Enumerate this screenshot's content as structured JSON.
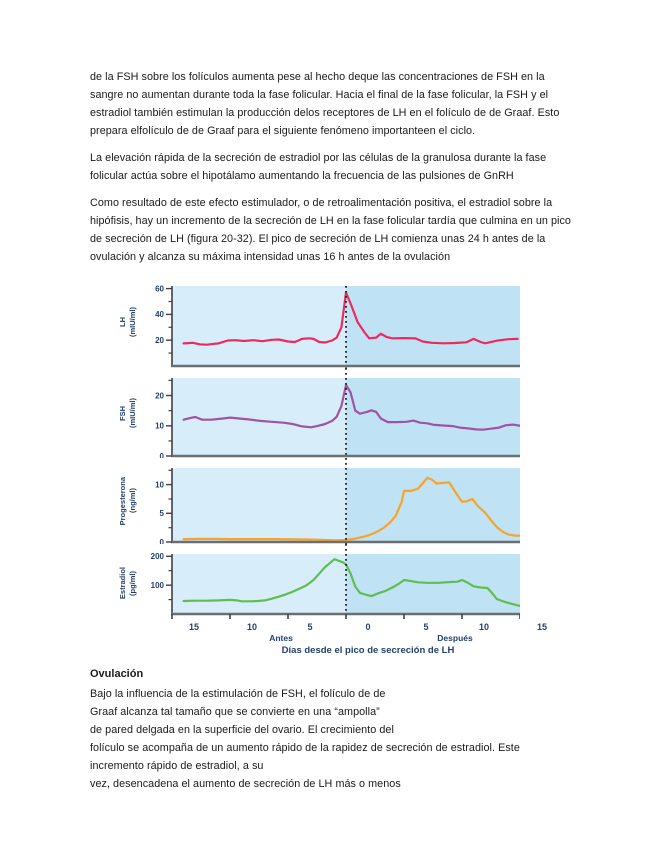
{
  "page": {
    "paragraphs": [
      "de la FSH sobre los folículos aumenta pese al hecho deque las concentraciones de FSH en la sangre no aumentan durante toda la fase folicular. Hacia el final de la fase folicular, la FSH y el estradiol también estimulan la producción delos receptores de LH en el folículo de de Graaf. Esto prepara elfolículo de de Graaf para el siguiente fenómeno importanteen el ciclo.",
      "La elevación rápida de la secreción de estradiol por las células de la granulosa durante la fase folicular actúa sobre el hipotálamo aumentando la frecuencia de las pulsiones de GnRH",
      "Como resultado de este efecto estimulador, o de retroalimentación positiva, el estradiol sobre la hipófisis, hay un incremento de la secreción de LH en la fase folicular tardía que culmina en un pico de secreción de LH (figura 20-32). El pico de secreción de LH comienza unas 24 h antes de la ovulación y alcanza su máxima intensidad unas 16 h antes de la ovulación"
    ],
    "ovulacion": {
      "heading": "Ovulación",
      "lines": [
        "Bajo la influencia de la estimulación de FSH, el folículo de de",
        "Graaf alcanza tal tamaño que se convierte en una “ampolla”",
        "de pared delgada en la superficie del ovario. El crecimiento del",
        "folículo se acompaña de un aumento rápido de la rapidez de secreción de estradiol. Este",
        "incremento rápido de estradiol, a su",
        "vez, desencadena el aumento de secreción de LH más o menos"
      ]
    }
  },
  "chart_data": {
    "type": "line",
    "xlabel": "Días desde el pico de secreción de LH",
    "x_range": [
      -15,
      15
    ],
    "x_ticks": [
      {
        "day": -15,
        "label": "15"
      },
      {
        "day": -10,
        "label": "10"
      },
      {
        "day": -5,
        "label": "5"
      },
      {
        "day": 0,
        "label": "0"
      },
      {
        "day": 5,
        "label": "5"
      },
      {
        "day": 10,
        "label": "10"
      },
      {
        "day": 15,
        "label": "15"
      }
    ],
    "x_region_labels": [
      {
        "label": "Antes",
        "day": -7.5
      },
      {
        "label": "Después",
        "day": 7.5
      }
    ],
    "marker": {
      "x": 0,
      "style": "dotted-vertical-line",
      "color": "#231f20"
    },
    "background": {
      "before_color": "#d7edf9",
      "after_color": "#bfe3f4"
    },
    "panels": [
      {
        "name": "LH",
        "ylabel": "LH",
        "yunits": "(mIU/ml)",
        "color": "#ec2a62",
        "ylim": [
          0,
          62
        ],
        "yticks": [
          20,
          40,
          60
        ],
        "yminor": [
          10,
          30,
          50
        ],
        "points": [
          [
            -14,
            17.5
          ],
          [
            -13.2,
            18
          ],
          [
            -12.6,
            16.8
          ],
          [
            -12,
            16.5
          ],
          [
            -11,
            17.5
          ],
          [
            -10.2,
            19.8
          ],
          [
            -9.5,
            20
          ],
          [
            -8.8,
            19.4
          ],
          [
            -8,
            20
          ],
          [
            -7.2,
            19.2
          ],
          [
            -6.4,
            20.3
          ],
          [
            -5.8,
            20.5
          ],
          [
            -5,
            19
          ],
          [
            -4.4,
            18.6
          ],
          [
            -3.8,
            21
          ],
          [
            -3.2,
            21.5
          ],
          [
            -2.8,
            21
          ],
          [
            -2.3,
            18.6
          ],
          [
            -1.8,
            18.2
          ],
          [
            -1.2,
            19.8
          ],
          [
            -0.8,
            22
          ],
          [
            -0.4,
            30
          ],
          [
            0,
            57
          ],
          [
            0.5,
            46
          ],
          [
            1,
            34
          ],
          [
            1.6,
            26
          ],
          [
            2,
            21.5
          ],
          [
            2.6,
            22
          ],
          [
            3,
            25
          ],
          [
            3.5,
            22.5
          ],
          [
            4,
            21.5
          ],
          [
            5,
            21.6
          ],
          [
            6,
            21.4
          ],
          [
            6.6,
            19
          ],
          [
            7.4,
            18
          ],
          [
            8.4,
            17.6
          ],
          [
            9.4,
            17.8
          ],
          [
            10.4,
            18.4
          ],
          [
            11,
            21
          ],
          [
            11.6,
            18.6
          ],
          [
            12,
            17.6
          ],
          [
            13,
            19.6
          ],
          [
            14,
            20.8
          ],
          [
            14.8,
            21
          ]
        ]
      },
      {
        "name": "FSH",
        "ylabel": "FSH",
        "yunits": "(mIU/ml)",
        "color": "#a2539f",
        "ylim": [
          0,
          25.8
        ],
        "yticks": [
          0,
          10,
          20
        ],
        "yminor": [
          5,
          15,
          25
        ],
        "points": [
          [
            -14,
            12
          ],
          [
            -13.4,
            12.6
          ],
          [
            -13,
            12.9
          ],
          [
            -12.4,
            12
          ],
          [
            -11.6,
            12
          ],
          [
            -10.6,
            12.4
          ],
          [
            -10,
            12.7
          ],
          [
            -9.2,
            12.4
          ],
          [
            -8.4,
            12.1
          ],
          [
            -7.4,
            11.6
          ],
          [
            -6.4,
            11.3
          ],
          [
            -5.4,
            11
          ],
          [
            -4.6,
            10.6
          ],
          [
            -3.8,
            9.8
          ],
          [
            -3,
            9.5
          ],
          [
            -2.4,
            10
          ],
          [
            -1.8,
            10.6
          ],
          [
            -1.2,
            11.6
          ],
          [
            -0.8,
            13
          ],
          [
            -0.4,
            16.5
          ],
          [
            0,
            23.5
          ],
          [
            0.4,
            21
          ],
          [
            0.8,
            15
          ],
          [
            1.2,
            14
          ],
          [
            1.8,
            14.6
          ],
          [
            2.2,
            15.1
          ],
          [
            2.6,
            14.6
          ],
          [
            3,
            12.4
          ],
          [
            3.6,
            11.2
          ],
          [
            4.4,
            11.2
          ],
          [
            5.2,
            11.3
          ],
          [
            5.8,
            11.7
          ],
          [
            6.4,
            11
          ],
          [
            7,
            10.8
          ],
          [
            7.6,
            10.3
          ],
          [
            8.4,
            10.1
          ],
          [
            9.2,
            9.9
          ],
          [
            9.8,
            9.4
          ],
          [
            10.6,
            9.1
          ],
          [
            11.2,
            8.8
          ],
          [
            11.8,
            8.7
          ],
          [
            12.4,
            9
          ],
          [
            13.2,
            9.4
          ],
          [
            13.8,
            10.2
          ],
          [
            14.4,
            10.4
          ],
          [
            15,
            10
          ]
        ]
      },
      {
        "name": "Progesterona",
        "ylabel": "Progesterona",
        "yunits": "(ng/ml)",
        "color": "#f6a42c",
        "ylim": [
          0,
          12.9
        ],
        "yticks": [
          0,
          5,
          10
        ],
        "yminor": [
          2.5,
          7.5,
          12.5
        ],
        "points": [
          [
            -14,
            0.5
          ],
          [
            -12,
            0.55
          ],
          [
            -10,
            0.5
          ],
          [
            -8,
            0.5
          ],
          [
            -6,
            0.5
          ],
          [
            -4,
            0.45
          ],
          [
            -2.5,
            0.4
          ],
          [
            -1,
            0.3
          ],
          [
            0,
            0.35
          ],
          [
            0.8,
            0.6
          ],
          [
            1.5,
            0.9
          ],
          [
            2,
            1.2
          ],
          [
            2.6,
            1.7
          ],
          [
            3.2,
            2.4
          ],
          [
            3.8,
            3.4
          ],
          [
            4.3,
            4.6
          ],
          [
            4.8,
            7
          ],
          [
            5,
            8.9
          ],
          [
            5.6,
            8.9
          ],
          [
            6.2,
            9.3
          ],
          [
            6.6,
            10.2
          ],
          [
            7,
            11.2
          ],
          [
            7.4,
            10.9
          ],
          [
            7.8,
            10.2
          ],
          [
            8.4,
            10.3
          ],
          [
            8.9,
            10.4
          ],
          [
            9.4,
            8.8
          ],
          [
            10,
            7
          ],
          [
            10.4,
            7.1
          ],
          [
            10.9,
            7.5
          ],
          [
            11.4,
            6.2
          ],
          [
            12,
            5.1
          ],
          [
            12.5,
            3.8
          ],
          [
            13,
            2.6
          ],
          [
            13.5,
            1.8
          ],
          [
            14,
            1.3
          ],
          [
            14.6,
            1.1
          ],
          [
            15,
            1.1
          ]
        ]
      },
      {
        "name": "Estradiol",
        "ylabel": "Estradiol",
        "yunits": "(pg/ml)",
        "color": "#5fbe4f",
        "ylim": [
          0,
          208
        ],
        "yticks": [
          100,
          200
        ],
        "yminor": [
          50,
          150
        ],
        "points": [
          [
            -14,
            45
          ],
          [
            -13,
            46
          ],
          [
            -12,
            46
          ],
          [
            -11,
            47
          ],
          [
            -10,
            49
          ],
          [
            -9.4,
            47
          ],
          [
            -9,
            44
          ],
          [
            -8.2,
            44
          ],
          [
            -7.6,
            45
          ],
          [
            -7,
            47
          ],
          [
            -6.4,
            53
          ],
          [
            -5.8,
            60
          ],
          [
            -5.2,
            68
          ],
          [
            -4.6,
            77
          ],
          [
            -4,
            88
          ],
          [
            -3.4,
            100
          ],
          [
            -2.8,
            118
          ],
          [
            -2.2,
            145
          ],
          [
            -1.8,
            163
          ],
          [
            -1.4,
            176
          ],
          [
            -1,
            190
          ],
          [
            -0.6,
            184
          ],
          [
            -0.2,
            178
          ],
          [
            0,
            172
          ],
          [
            0.4,
            140
          ],
          [
            0.8,
            95
          ],
          [
            1.2,
            73
          ],
          [
            1.8,
            66
          ],
          [
            2.2,
            62
          ],
          [
            2.8,
            72
          ],
          [
            3.4,
            80
          ],
          [
            4,
            92
          ],
          [
            4.6,
            106
          ],
          [
            5,
            118
          ],
          [
            5.6,
            114
          ],
          [
            6.2,
            110
          ],
          [
            7,
            108
          ],
          [
            8,
            108
          ],
          [
            9,
            111
          ],
          [
            9.6,
            112
          ],
          [
            10,
            118
          ],
          [
            10.5,
            108
          ],
          [
            11,
            96
          ],
          [
            11.6,
            92
          ],
          [
            12.2,
            90
          ],
          [
            12.6,
            72
          ],
          [
            13,
            52
          ],
          [
            13.6,
            43
          ],
          [
            14.2,
            36
          ],
          [
            15,
            28
          ]
        ]
      }
    ]
  }
}
